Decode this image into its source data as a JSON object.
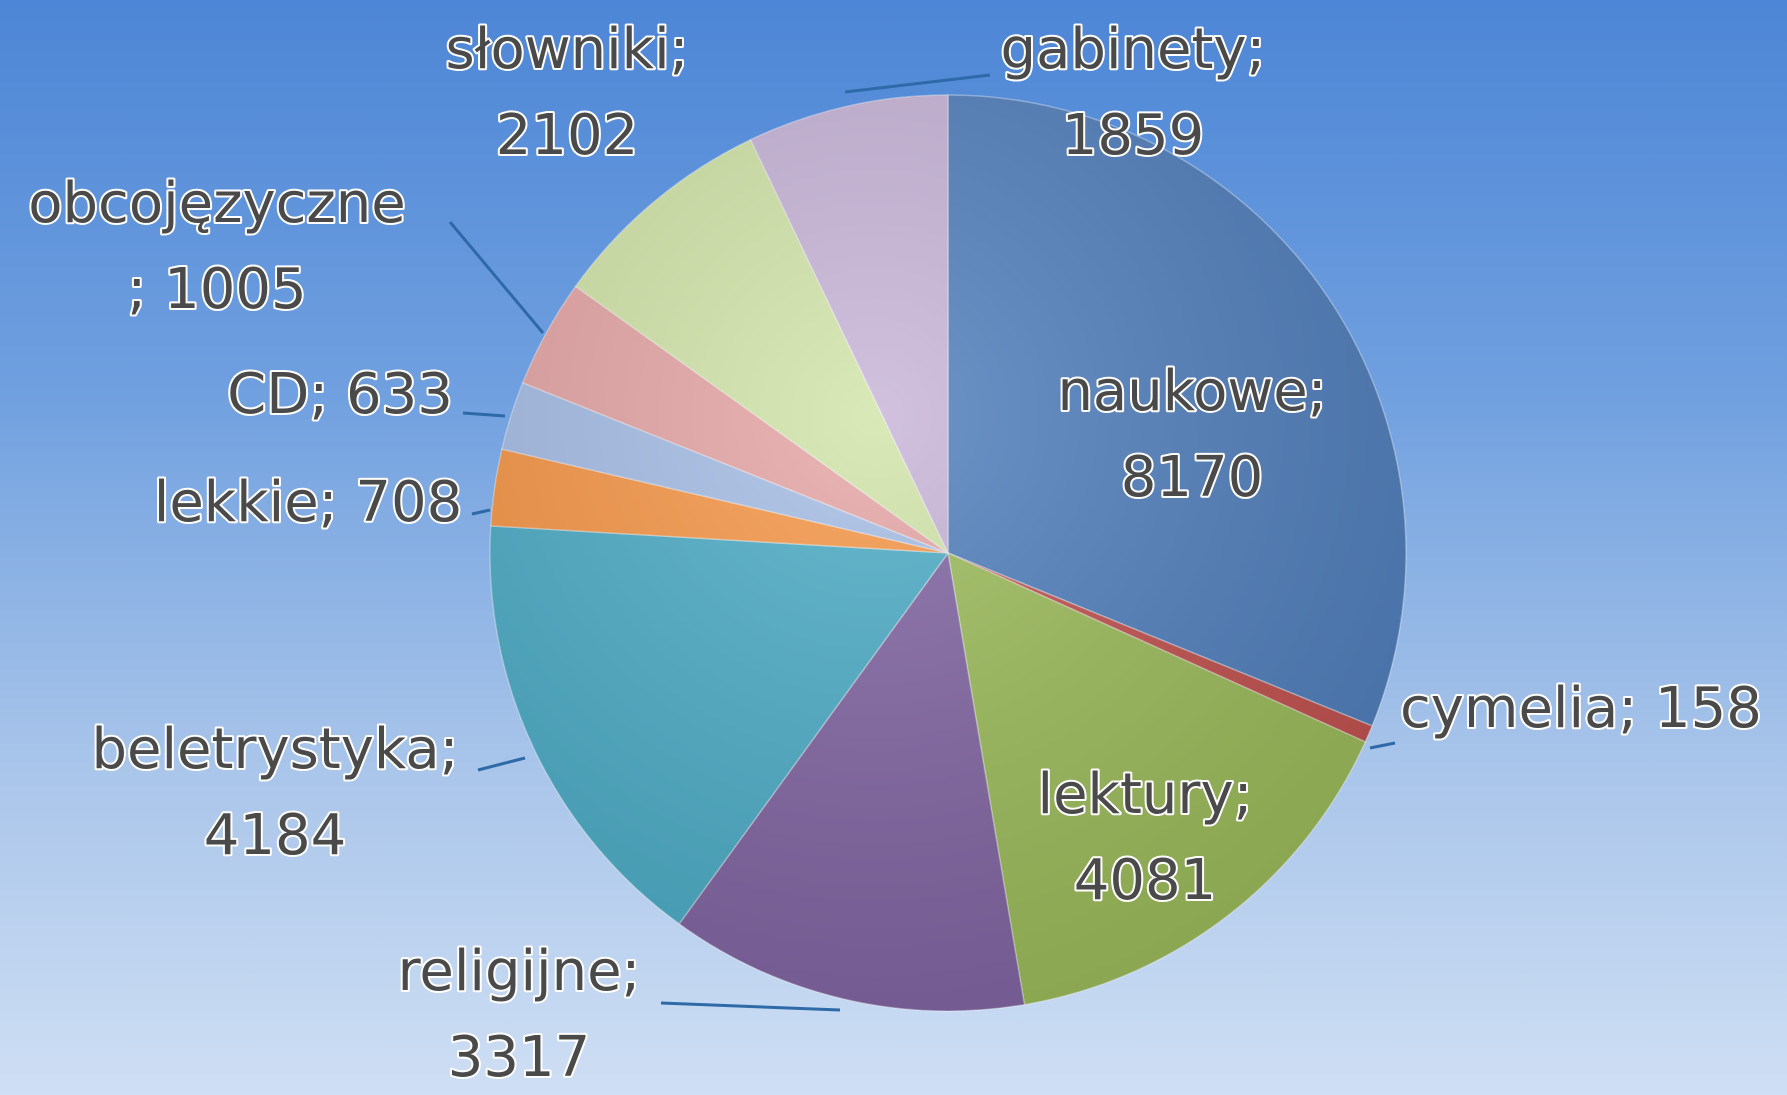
{
  "chart_data": {
    "type": "pie",
    "title": "",
    "slices": [
      {
        "label": "naukowe",
        "value": 8170,
        "text": [
          "naukowe;",
          "8170"
        ],
        "color": "#4f7ebc"
      },
      {
        "label": "cymelia",
        "value": 158,
        "text": [
          "cymelia; 158"
        ],
        "color": "#c0504d"
      },
      {
        "label": "lektury",
        "value": 4081,
        "text": [
          "lektury;",
          "4081"
        ],
        "color": "#9bbb59"
      },
      {
        "label": "religijne",
        "value": 3317,
        "text": [
          "religijne;",
          "3317"
        ],
        "color": "#8064a2"
      },
      {
        "label": "beletrystyka",
        "value": 4184,
        "text": [
          "beletrystyka;",
          "4184"
        ],
        "color": "#4bacc6"
      },
      {
        "label": "lekkie",
        "value": 708,
        "text": [
          "lekkie; 708"
        ],
        "color": "#f79646"
      },
      {
        "label": "CD",
        "value": 633,
        "text": [
          "CD; 633"
        ],
        "color": "#a5bde6"
      },
      {
        "label": "obcojęzyczne",
        "value": 1005,
        "text": [
          "obcojęzyczne",
          "; 1005"
        ],
        "color": "#e6a5a5"
      },
      {
        "label": "słowniki",
        "value": 2102,
        "text": [
          "słowniki;",
          "2102"
        ],
        "color": "#d1e4a8"
      },
      {
        "label": "gabinety",
        "value": 1859,
        "text": [
          "gabinety;",
          "1859"
        ],
        "color": "#c7b4d8"
      }
    ]
  }
}
